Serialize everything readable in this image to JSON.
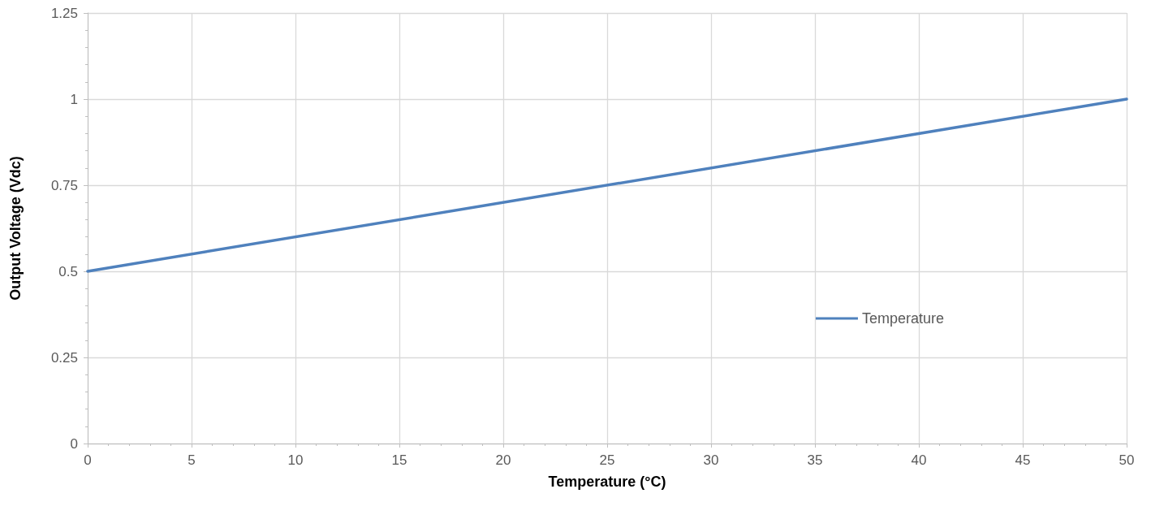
{
  "chart_data": {
    "type": "line",
    "xlabel": "Temperature (°C)",
    "ylabel": "Output Voltage (Vdc)",
    "x": [
      0,
      50
    ],
    "series": [
      {
        "name": "Temperature",
        "color": "#4f81bd",
        "values": [
          0.5,
          1
        ]
      }
    ],
    "xlim": [
      0,
      50
    ],
    "xticks": [
      0,
      5,
      10,
      15,
      20,
      25,
      30,
      35,
      40,
      45,
      50
    ],
    "ylim": [
      0,
      1.25
    ],
    "yticks": [
      0,
      0.25,
      0.5,
      0.75,
      1,
      1.25
    ],
    "grid": true,
    "legend": "right",
    "marker": "none",
    "line_style": "solid"
  }
}
